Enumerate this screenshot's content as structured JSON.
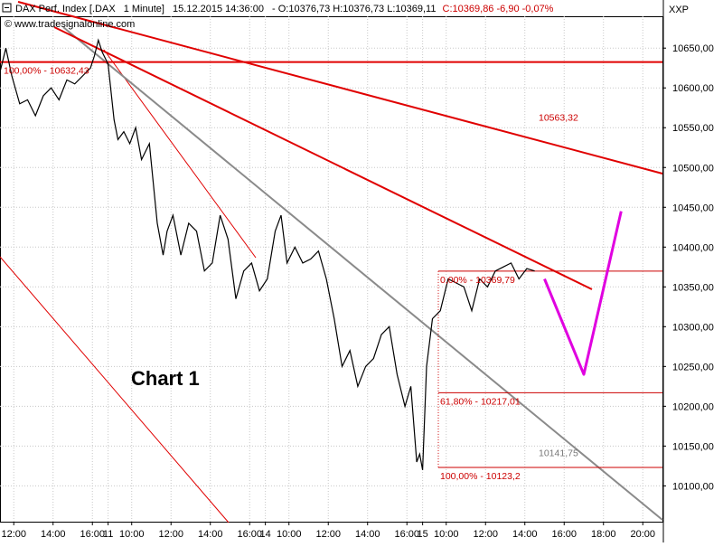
{
  "header": {
    "instrument": "DAX Perf. Index [.DAX",
    "interval": "1 Minute]",
    "datetime": "15.12.2015 14:36:00",
    "ohlc_prefix": "- O:10376,73 H:10376,73 L:10369,11",
    "close_text": "C:10369,86 -6,90 -0,07%",
    "website": "www.tradesignalonline.com",
    "axis_unit": "XXP"
  },
  "chart_title": "Chart 1",
  "colors": {
    "price": "#000000",
    "trendline": "#e00000",
    "fib": "#cc0000",
    "grey_trend": "#8a8a8a",
    "projection": "#e000e0",
    "grid": "#c8c8c8",
    "close_text": "#cc0000"
  },
  "chart_data": {
    "type": "line",
    "ylim": [
      10055,
      10690
    ],
    "y_ticks": [
      "10650,00",
      "10600,00",
      "10550,00",
      "10500,00",
      "10450,00",
      "10400,00",
      "10350,00",
      "10300,00",
      "10250,00",
      "10200,00",
      "10150,00",
      "10100,00"
    ],
    "y_tick_values": [
      10650,
      10600,
      10550,
      10500,
      10450,
      10400,
      10350,
      10300,
      10250,
      10200,
      10150,
      10100
    ],
    "x_ticks": [
      {
        "label": "12:00",
        "x": 0.7
      },
      {
        "label": "14:00",
        "x": 2.7
      },
      {
        "label": "16:00",
        "x": 4.7
      },
      {
        "label": "11",
        "x": 5.5
      },
      {
        "label": "10:00",
        "x": 6.7
      },
      {
        "label": "12:00",
        "x": 8.7
      },
      {
        "label": "14:00",
        "x": 10.7
      },
      {
        "label": "16:00",
        "x": 12.7
      },
      {
        "label": "14",
        "x": 13.5
      },
      {
        "label": "10:00",
        "x": 14.7
      },
      {
        "label": "12:00",
        "x": 16.7
      },
      {
        "label": "14:00",
        "x": 18.7
      },
      {
        "label": "16:00",
        "x": 20.7
      },
      {
        "label": "15",
        "x": 21.5
      },
      {
        "label": "10:00",
        "x": 22.7
      },
      {
        "label": "12:00",
        "x": 24.7
      },
      {
        "label": "14:00",
        "x": 26.7
      },
      {
        "label": "16:00",
        "x": 28.7
      },
      {
        "label": "18:00",
        "x": 30.7
      },
      {
        "label": "20:00",
        "x": 32.7
      }
    ],
    "xlim": [
      0,
      33.7
    ],
    "series": [
      {
        "x": [
          0,
          0.3,
          0.6,
          1.0,
          1.4,
          1.8,
          2.2,
          2.6,
          3.0,
          3.4,
          3.8,
          4.2,
          4.6,
          4.8,
          5.0,
          5.2,
          5.5,
          5.8,
          6.0,
          6.3,
          6.6,
          6.9,
          7.2,
          7.6,
          8.0,
          8.3,
          8.5,
          8.8,
          9.2,
          9.6,
          10.0,
          10.4,
          10.8,
          11.2,
          11.6,
          12.0,
          12.4,
          12.8,
          13.2,
          13.6,
          14.0,
          14.3,
          14.6,
          15.0,
          15.4,
          15.8,
          16.2,
          16.6,
          17.0,
          17.4,
          17.8,
          18.2,
          18.6,
          19.0,
          19.4,
          19.8,
          20.2,
          20.6,
          20.9,
          21.2,
          21.35,
          21.5,
          21.7,
          22.0,
          22.4,
          22.8,
          23.2,
          23.6,
          24.0,
          24.4,
          24.8,
          25.2,
          25.6,
          26.0,
          26.4,
          26.8,
          27.2
        ],
        "values": [
          10620,
          10650,
          10615,
          10580,
          10585,
          10565,
          10590,
          10600,
          10585,
          10610,
          10605,
          10615,
          10625,
          10640,
          10660,
          10645,
          10630,
          10560,
          10535,
          10545,
          10530,
          10550,
          10510,
          10530,
          10430,
          10390,
          10420,
          10440,
          10390,
          10430,
          10420,
          10370,
          10380,
          10440,
          10410,
          10335,
          10370,
          10380,
          10345,
          10360,
          10420,
          10440,
          10380,
          10400,
          10380,
          10385,
          10395,
          10360,
          10310,
          10250,
          10270,
          10225,
          10250,
          10260,
          10290,
          10300,
          10240,
          10200,
          10225,
          10130,
          10140,
          10120,
          10250,
          10310,
          10320,
          10360,
          10355,
          10350,
          10320,
          10360,
          10350,
          10370,
          10375,
          10380,
          10360,
          10373,
          10370
        ]
      }
    ],
    "annotations": [
      {
        "label": "100,00% - 10632,43",
        "value": 10632.43
      },
      {
        "label": "0,00% - 10369,79",
        "value": 10369.79
      },
      {
        "label": "61,80% - 10217,01",
        "value": 10217.01
      },
      {
        "label": "100,00% - 10123,2",
        "value": 10123.2
      },
      {
        "label": "10563,32",
        "value": 10563.32
      },
      {
        "label": "10141,75",
        "value": 10141.75
      }
    ],
    "projection": {
      "x": [
        27.7,
        29.7,
        31.6
      ],
      "values": [
        10360,
        10240,
        10445
      ]
    }
  }
}
